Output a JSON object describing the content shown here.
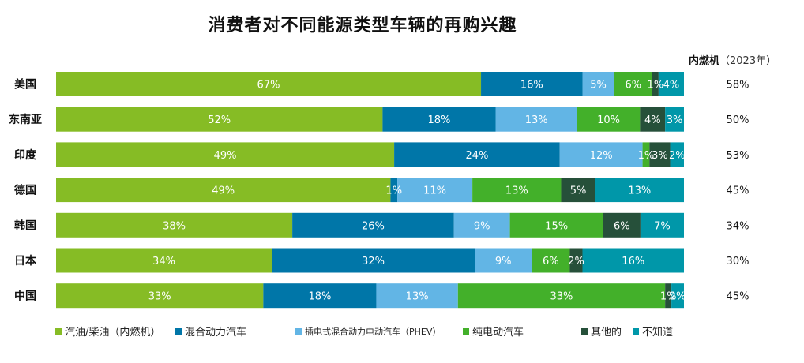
{
  "chart_data": {
    "type": "bar",
    "orientation": "horizontal",
    "stacked": true,
    "title": "消费者对不同能源类型车辆的再购兴趣",
    "xlabel": "",
    "ylabel": "",
    "xlim": [
      0,
      100
    ],
    "grid": false,
    "legend_position": "bottom",
    "categories": [
      "美国",
      "东南亚",
      "印度",
      "德国",
      "韩国",
      "日本",
      "中国"
    ],
    "series": [
      {
        "name": "汽油/柴油（内燃机）",
        "color": "#86bc25",
        "values": [
          67,
          52,
          49,
          49,
          38,
          34,
          33
        ],
        "labels": [
          "67%",
          "52%",
          "49%",
          "49%",
          "38%",
          "34%",
          "33%"
        ]
      },
      {
        "name": "混合动力汽车",
        "color": "#0076a8",
        "values": [
          16,
          18,
          24,
          1,
          26,
          32,
          18
        ],
        "labels": [
          "16%",
          "18%",
          "24%",
          "1%",
          "26%",
          "32%",
          "18%"
        ]
      },
      {
        "name": "插电式混合动力电动汽车（PHEV）",
        "color": "#62b5e5",
        "values": [
          5,
          13,
          12,
          11,
          9,
          9,
          13
        ],
        "labels": [
          "5%",
          "13%",
          "12%",
          "11%",
          "9%",
          "9%",
          "13%"
        ]
      },
      {
        "name": "纯电动汽车",
        "color": "#43b02a",
        "values": [
          6,
          10,
          1,
          13,
          15,
          6,
          33
        ],
        "labels": [
          "6%",
          "10%",
          "1%",
          "13%",
          "15%",
          "6%",
          "33%"
        ]
      },
      {
        "name": "其他的",
        "color": "#26503a",
        "values": [
          1,
          4,
          3,
          5,
          6,
          2,
          1
        ],
        "labels": [
          "1%",
          "4%",
          "3%",
          "5%",
          "6%",
          "2%",
          "1%"
        ]
      },
      {
        "name": "不知道",
        "color": "#0097a9",
        "values": [
          4,
          3,
          2,
          13,
          7,
          16,
          2
        ],
        "labels": [
          "4%",
          "3%",
          "2%",
          "13%",
          "7%",
          "16%",
          "2%"
        ]
      }
    ],
    "ice_header": "内燃机",
    "ice_header_year": "（2023年）",
    "ice_values": [
      "58%",
      "50%",
      "53%",
      "45%",
      "34%",
      "30%",
      "45%"
    ]
  }
}
